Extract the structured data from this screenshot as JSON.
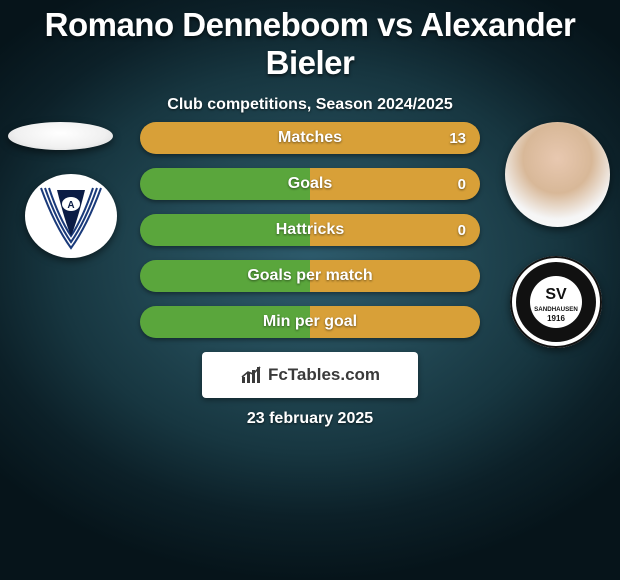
{
  "title": "Romano Denneboom vs Alexander Bieler",
  "subtitle": "Club competitions, Season 2024/2025",
  "date": "23 february 2025",
  "brand": "FcTables.com",
  "colors": {
    "left": "#5aa63c",
    "right": "#d8a038",
    "bar_text": "#ffffff"
  },
  "bars": [
    {
      "label": "Matches",
      "left_value": "",
      "right_value": "13",
      "left_pct": 0,
      "right_pct": 100
    },
    {
      "label": "Goals",
      "left_value": "",
      "right_value": "0",
      "left_pct": 50,
      "right_pct": 50
    },
    {
      "label": "Hattricks",
      "left_value": "",
      "right_value": "0",
      "left_pct": 50,
      "right_pct": 50
    },
    {
      "label": "Goals per match",
      "left_value": "",
      "right_value": "",
      "left_pct": 50,
      "right_pct": 50
    },
    {
      "label": "Min per goal",
      "left_value": "",
      "right_value": "",
      "left_pct": 50,
      "right_pct": 50
    }
  ],
  "club1_name": "arminia-bielefeld-badge",
  "club2_name": "sv-sandhausen-badge",
  "club2_text_top": "SV",
  "club2_text_mid": "SANDHAUSEN",
  "club2_text_bot": "1916"
}
